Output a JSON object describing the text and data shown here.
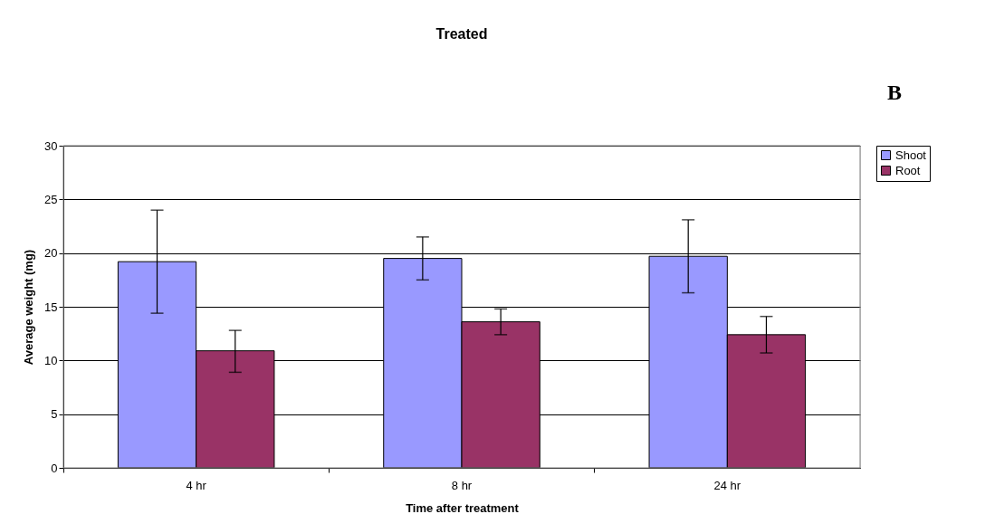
{
  "chart_data": {
    "type": "bar",
    "title": "Treated",
    "xlabel": "Time after treatment",
    "ylabel": "Average weight (mg)",
    "categories": [
      "4 hr",
      "8 hr",
      "24 hr"
    ],
    "series": [
      {
        "name": "Shoot",
        "color": "#9999ff",
        "values": [
          19.2,
          19.5,
          19.7
        ],
        "errors": [
          [
            14.4,
            24.0
          ],
          [
            17.5,
            21.5
          ],
          [
            16.3,
            23.1
          ]
        ]
      },
      {
        "name": "Root",
        "color": "#993366",
        "values": [
          10.9,
          13.6,
          12.4
        ],
        "errors": [
          [
            8.9,
            12.8
          ],
          [
            12.4,
            14.8
          ],
          [
            10.7,
            14.1
          ]
        ]
      }
    ],
    "ylim": [
      0,
      30
    ],
    "yticks": [
      0,
      5,
      10,
      15,
      20,
      25,
      30
    ],
    "grid": "y",
    "legend": "right",
    "annotations": [
      "B"
    ]
  }
}
